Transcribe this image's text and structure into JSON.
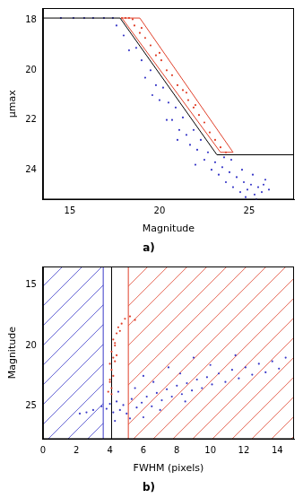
{
  "chart_data": [
    {
      "type": "scatter",
      "title": "a)",
      "x_label": "Magnitude",
      "y_label": "μmax",
      "xlim": [
        13.5,
        27.5
      ],
      "ylim": [
        25.2,
        17.5
      ],
      "xticks": [
        15,
        20,
        25
      ],
      "yticks": [
        18,
        20,
        22,
        24
      ],
      "grid": false,
      "legend": false,
      "series": [
        {
          "color": "#3a3ac8",
          "marker": "dot",
          "x": [
            14.5,
            15.2,
            15.8,
            16.3,
            16.9,
            17.4,
            17.6,
            18.0,
            18.3,
            18.7,
            19.0,
            19.2,
            19.5,
            19.8,
            20.0,
            20.2,
            20.5,
            20.7,
            20.9,
            21.1,
            21.3,
            21.5,
            21.7,
            21.9,
            22.1,
            22.3,
            22.5,
            22.7,
            22.9,
            23.1,
            23.3,
            23.5,
            23.7,
            23.9,
            24.1,
            24.3,
            24.5,
            24.7,
            24.9,
            25.1,
            25.3,
            25.5,
            25.7,
            25.9,
            24.0,
            24.6,
            25.2,
            25.8,
            26.1,
            23.6,
            24.8,
            25.4,
            22.0,
            21.0,
            20.4,
            19.6
          ],
          "values": [
            17.9,
            17.9,
            17.9,
            17.9,
            17.9,
            17.9,
            18.2,
            18.6,
            19.2,
            19.1,
            19.6,
            20.3,
            20.0,
            20.6,
            21.2,
            20.7,
            21.3,
            22.0,
            21.5,
            22.4,
            21.9,
            22.6,
            23.0,
            22.4,
            23.2,
            22.8,
            23.6,
            23.3,
            24.0,
            23.7,
            24.2,
            23.9,
            24.5,
            24.1,
            24.7,
            24.3,
            24.9,
            24.5,
            24.8,
            24.6,
            25.0,
            24.7,
            24.9,
            24.4,
            23.6,
            24.0,
            24.2,
            24.6,
            24.8,
            23.5,
            25.1,
            25.2,
            23.8,
            22.8,
            22.0,
            21.0
          ]
        },
        {
          "color": "#e0402a",
          "marker": "dot",
          "x": [
            17.9,
            18.1,
            18.3,
            18.5,
            18.6,
            18.9,
            19.2,
            19.5,
            19.8,
            20.1,
            20.4,
            20.7,
            21.0,
            21.3,
            21.6,
            21.9,
            22.2,
            22.5,
            22.8,
            23.1,
            23.4,
            23.7,
            19.0,
            20.0,
            21.5,
            22.0
          ],
          "values": [
            17.9,
            17.9,
            17.9,
            17.95,
            18.2,
            18.5,
            18.7,
            19.0,
            19.4,
            19.6,
            20.0,
            20.2,
            20.6,
            20.8,
            21.2,
            21.5,
            21.8,
            22.1,
            22.5,
            22.8,
            23.1,
            23.3,
            18.3,
            19.3,
            20.9,
            21.4
          ]
        },
        {
          "type": "line",
          "color": "#e0402a",
          "line_style": "solid",
          "x": [
            17.9,
            18.9,
            24.1,
            23.4,
            17.9
          ],
          "values": [
            17.9,
            17.9,
            23.3,
            23.3,
            17.9
          ]
        },
        {
          "type": "line",
          "color": "#000000",
          "line_style": "solid",
          "x": [
            13.5,
            17.8,
            23.2,
            27.5
          ],
          "values": [
            17.9,
            17.9,
            23.4,
            23.4
          ]
        }
      ]
    },
    {
      "type": "scatter",
      "title": "b)",
      "x_label": "FWHM (pixels)",
      "y_label": "Magnitude",
      "xlim": [
        0,
        15
      ],
      "ylim": [
        27.7,
        13.5
      ],
      "xticks": [
        0,
        2,
        4,
        6,
        8,
        10,
        12,
        14
      ],
      "yticks": [
        15,
        20,
        25
      ],
      "grid": false,
      "legend": false,
      "regions": [
        {
          "x": [
            0,
            3.6
          ],
          "color": "#3a3ac8"
        },
        {
          "x": [
            5.1,
            15
          ],
          "color": "#e0402a"
        }
      ],
      "vlines": [
        {
          "x": 4.1,
          "color": "#000000"
        }
      ],
      "series": [
        {
          "color": "#3a3ac8",
          "marker": "dot",
          "x": [
            3.5,
            3.8,
            4.0,
            4.2,
            4.4,
            4.6,
            4.8,
            5.0,
            5.3,
            5.6,
            5.9,
            6.2,
            6.5,
            6.8,
            7.1,
            7.4,
            7.7,
            8.0,
            8.3,
            8.6,
            8.9,
            9.2,
            9.5,
            9.8,
            10.1,
            10.5,
            10.9,
            11.3,
            11.7,
            12.1,
            12.5,
            12.9,
            13.3,
            13.7,
            14.1,
            14.5,
            6.0,
            7.5,
            9.0,
            5.5,
            4.5,
            6.6,
            8.2,
            10.0,
            11.5,
            3.0,
            2.6,
            2.2,
            7.0,
            8.5,
            5.2,
            6.0,
            4.3
          ],
          "values": [
            25.0,
            25.2,
            24.8,
            25.5,
            24.6,
            25.3,
            24.9,
            25.6,
            24.4,
            25.1,
            24.7,
            24.2,
            25.0,
            23.9,
            24.5,
            23.6,
            24.2,
            23.3,
            24.0,
            23.1,
            23.7,
            22.8,
            23.5,
            22.6,
            23.2,
            22.3,
            23.0,
            22.0,
            22.7,
            21.8,
            22.4,
            21.5,
            22.2,
            21.3,
            21.9,
            21.0,
            22.5,
            21.8,
            21.0,
            23.5,
            23.8,
            23.0,
            22.3,
            21.6,
            20.8,
            25.3,
            25.5,
            25.6,
            25.3,
            24.6,
            26.0,
            25.9,
            26.2
          ]
        },
        {
          "color": "#e0402a",
          "marker": "dot",
          "x": [
            4.1,
            4.0,
            4.2,
            4.1,
            4.0,
            4.2,
            4.1,
            4.3,
            4.2,
            4.4,
            4.5,
            4.7,
            4.9,
            5.2,
            5.5,
            4.6,
            4.3,
            4.0,
            4.3,
            4.1,
            3.9,
            4.4
          ],
          "values": [
            23.5,
            23.0,
            22.5,
            22.0,
            21.5,
            21.0,
            20.5,
            20.0,
            19.5,
            19.0,
            18.5,
            18.2,
            17.8,
            17.6,
            17.9,
            18.8,
            19.8,
            22.8,
            21.3,
            24.0,
            23.8,
            20.8
          ]
        }
      ]
    }
  ]
}
